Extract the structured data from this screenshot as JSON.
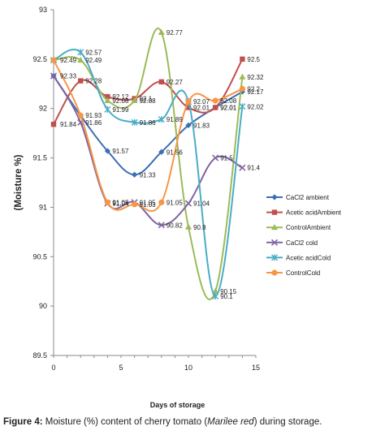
{
  "chart_data": {
    "type": "line",
    "xlabel": "Days of storage",
    "ylabel": "(Moisture %)",
    "xlim": [
      0,
      15
    ],
    "ylim": [
      89.5,
      93
    ],
    "xticks": [
      0,
      5,
      10,
      15
    ],
    "yticks": [
      89.5,
      90,
      90.5,
      91,
      91.5,
      92,
      92.5,
      93
    ],
    "grid": false,
    "legend_position": "right",
    "series": [
      {
        "name": "CaCl2 ambient",
        "color": "#3a6fb5",
        "marker": "diamond",
        "x": [
          0,
          2,
          4,
          6,
          8,
          10,
          12,
          14
        ],
        "y": [
          92.33,
          91.93,
          91.57,
          91.33,
          91.56,
          91.83,
          92.01,
          92.17
        ],
        "labels": [
          "92.33",
          "91.93",
          "91.57",
          "91.33",
          "91.56",
          "91.83",
          "92.01",
          "92.17"
        ]
      },
      {
        "name": "Acetic acidAmbient",
        "color": "#c0504d",
        "marker": "square",
        "x": [
          0,
          2,
          4,
          6,
          8,
          10,
          12,
          14
        ],
        "y": [
          91.84,
          92.28,
          92.12,
          92.1,
          92.27,
          92.01,
          92.01,
          92.5
        ],
        "labels": [
          "91.84",
          "92.28",
          "92.12",
          "92.1",
          "92.27",
          "92.01",
          "92.01",
          "92.5"
        ]
      },
      {
        "name": "ControlAmbient",
        "color": "#9bbb59",
        "marker": "triangle",
        "x": [
          0,
          2,
          4,
          6,
          8,
          10,
          12,
          14
        ],
        "y": [
          92.49,
          92.49,
          92.08,
          92.08,
          92.77,
          90.8,
          90.15,
          92.32
        ],
        "labels": [
          "92.49",
          "92.49",
          "92.08",
          "92.08",
          "92.77",
          "90.8",
          "90.15",
          "92.32"
        ]
      },
      {
        "name": "CaCl2 cold",
        "color": "#8064a2",
        "marker": "x",
        "x": [
          0,
          2,
          4,
          6,
          8,
          10,
          12,
          14
        ],
        "y": [
          92.33,
          91.86,
          91.04,
          91.05,
          90.82,
          91.04,
          91.5,
          91.4
        ],
        "labels": [
          "",
          "91.86",
          "91.04",
          "91.05",
          "90.82",
          "91.04",
          "91.5",
          "91.4"
        ]
      },
      {
        "name": "Acetic acidCold",
        "color": "#4bacc6",
        "marker": "asterisk",
        "x": [
          0,
          2,
          4,
          6,
          8,
          10,
          12,
          14
        ],
        "y": [
          92.49,
          92.57,
          91.99,
          91.86,
          91.89,
          92.07,
          90.1,
          92.02
        ],
        "labels": [
          "",
          "92.57",
          "91.99",
          "91.86",
          "91.89",
          "",
          "90.1",
          "92.02"
        ]
      },
      {
        "name": "ControlCold",
        "color": "#f79646",
        "marker": "circle",
        "x": [
          0,
          2,
          4,
          6,
          8,
          10,
          12,
          14
        ],
        "y": [
          92.49,
          91.93,
          91.05,
          91.03,
          91.05,
          92.07,
          92.08,
          92.2
        ],
        "labels": [
          "",
          "",
          "91.05",
          "91.03",
          "91.05",
          "92.07",
          "92.08",
          "92.2"
        ]
      }
    ]
  },
  "caption": {
    "figure_label": "Figure 4:",
    "text_before": " Moisture (%) content of cherry tomato (",
    "italic": "Marilee red",
    "text_after": ") during storage."
  }
}
